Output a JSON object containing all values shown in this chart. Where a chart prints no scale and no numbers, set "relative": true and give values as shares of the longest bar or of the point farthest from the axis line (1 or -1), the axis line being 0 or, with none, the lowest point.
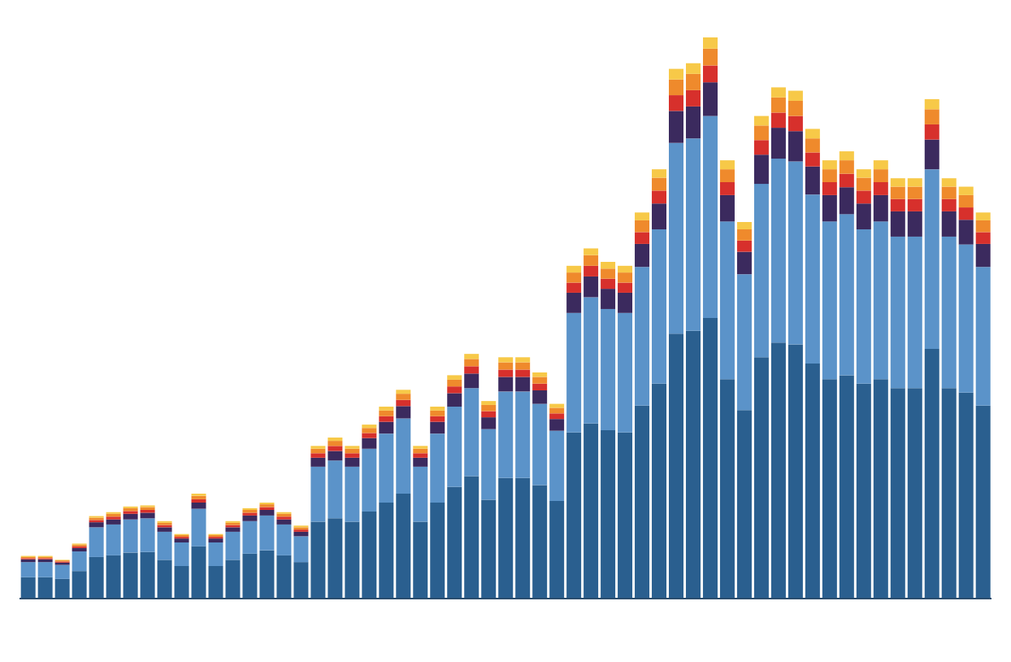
{
  "chart_data": {
    "type": "bar",
    "stacked": true,
    "relative": true,
    "categories": [
      null,
      null,
      null,
      null,
      null,
      null,
      null,
      null,
      null,
      null,
      null,
      null,
      null,
      null,
      null,
      null,
      null,
      null,
      null,
      null,
      null,
      null,
      null,
      null,
      null,
      null,
      null,
      null,
      null,
      null,
      null,
      null,
      null,
      null,
      null,
      null,
      null,
      null,
      null,
      null,
      null,
      null,
      null,
      null,
      null,
      null,
      null,
      null,
      null,
      null,
      null,
      null,
      null,
      null,
      null,
      null,
      null
    ],
    "series": [
      {
        "color": "#2a5f8f",
        "values": [
          0.038,
          0.038,
          0.035,
          0.049,
          0.074,
          0.077,
          0.082,
          0.083,
          0.069,
          0.058,
          0.093,
          0.058,
          0.069,
          0.08,
          0.086,
          0.077,
          0.065,
          0.137,
          0.143,
          0.137,
          0.155,
          0.171,
          0.187,
          0.137,
          0.171,
          0.199,
          0.218,
          0.176,
          0.215,
          0.215,
          0.202,
          0.174,
          0.296,
          0.312,
          0.3,
          0.296,
          0.344,
          0.383,
          0.472,
          0.477,
          0.5,
          0.391,
          0.336,
          0.43,
          0.456,
          0.453,
          0.419,
          0.391,
          0.398,
          0.383,
          0.391,
          0.375,
          0.375,
          0.445,
          0.375,
          0.367,
          0.344
        ]
      },
      {
        "color": "#5b93c9",
        "values": [
          0.027,
          0.027,
          0.025,
          0.035,
          0.053,
          0.055,
          0.059,
          0.06,
          0.05,
          0.042,
          0.067,
          0.042,
          0.05,
          0.058,
          0.062,
          0.055,
          0.046,
          0.098,
          0.103,
          0.098,
          0.112,
          0.123,
          0.134,
          0.098,
          0.123,
          0.143,
          0.157,
          0.126,
          0.154,
          0.154,
          0.145,
          0.125,
          0.213,
          0.225,
          0.216,
          0.213,
          0.247,
          0.275,
          0.34,
          0.343,
          0.36,
          0.281,
          0.242,
          0.309,
          0.328,
          0.326,
          0.301,
          0.281,
          0.287,
          0.275,
          0.281,
          0.27,
          0.27,
          0.32,
          0.27,
          0.264,
          0.247
        ]
      },
      {
        "color": "#3b2a5e",
        "values": [
          0.005,
          0.005,
          0.004,
          0.006,
          0.009,
          0.009,
          0.01,
          0.01,
          0.008,
          0.007,
          0.011,
          0.007,
          0.008,
          0.01,
          0.01,
          0.009,
          0.008,
          0.016,
          0.017,
          0.016,
          0.019,
          0.021,
          0.022,
          0.016,
          0.021,
          0.024,
          0.026,
          0.021,
          0.026,
          0.026,
          0.024,
          0.021,
          0.036,
          0.037,
          0.036,
          0.036,
          0.041,
          0.046,
          0.057,
          0.057,
          0.06,
          0.047,
          0.04,
          0.052,
          0.055,
          0.054,
          0.05,
          0.047,
          0.048,
          0.046,
          0.047,
          0.045,
          0.045,
          0.053,
          0.045,
          0.044,
          0.041
        ]
      },
      {
        "color": "#d7302c",
        "values": [
          0.002,
          0.002,
          0.002,
          0.003,
          0.004,
          0.005,
          0.005,
          0.005,
          0.004,
          0.003,
          0.006,
          0.003,
          0.004,
          0.005,
          0.005,
          0.005,
          0.004,
          0.008,
          0.009,
          0.008,
          0.009,
          0.01,
          0.011,
          0.008,
          0.01,
          0.012,
          0.013,
          0.011,
          0.013,
          0.013,
          0.012,
          0.01,
          0.018,
          0.019,
          0.018,
          0.018,
          0.021,
          0.023,
          0.028,
          0.029,
          0.03,
          0.023,
          0.02,
          0.026,
          0.027,
          0.027,
          0.025,
          0.023,
          0.024,
          0.023,
          0.023,
          0.022,
          0.022,
          0.027,
          0.022,
          0.022,
          0.021
        ]
      },
      {
        "color": "#ef8a2c",
        "values": [
          0.002,
          0.002,
          0.002,
          0.003,
          0.004,
          0.005,
          0.005,
          0.005,
          0.004,
          0.003,
          0.006,
          0.003,
          0.004,
          0.005,
          0.005,
          0.005,
          0.004,
          0.008,
          0.009,
          0.008,
          0.009,
          0.01,
          0.011,
          0.008,
          0.01,
          0.012,
          0.013,
          0.011,
          0.013,
          0.013,
          0.012,
          0.01,
          0.018,
          0.019,
          0.018,
          0.018,
          0.021,
          0.023,
          0.028,
          0.029,
          0.03,
          0.023,
          0.02,
          0.026,
          0.027,
          0.027,
          0.025,
          0.023,
          0.024,
          0.023,
          0.023,
          0.022,
          0.022,
          0.027,
          0.022,
          0.022,
          0.021
        ]
      },
      {
        "color": "#f7c948",
        "values": [
          0.002,
          0.002,
          0.001,
          0.002,
          0.003,
          0.003,
          0.003,
          0.003,
          0.003,
          0.002,
          0.004,
          0.002,
          0.003,
          0.003,
          0.003,
          0.003,
          0.003,
          0.005,
          0.006,
          0.005,
          0.006,
          0.007,
          0.007,
          0.005,
          0.007,
          0.008,
          0.009,
          0.007,
          0.009,
          0.009,
          0.008,
          0.007,
          0.012,
          0.012,
          0.012,
          0.012,
          0.014,
          0.015,
          0.019,
          0.019,
          0.02,
          0.016,
          0.013,
          0.017,
          0.018,
          0.018,
          0.017,
          0.016,
          0.016,
          0.015,
          0.016,
          0.015,
          0.015,
          0.018,
          0.015,
          0.015,
          0.014
        ]
      }
    ]
  }
}
